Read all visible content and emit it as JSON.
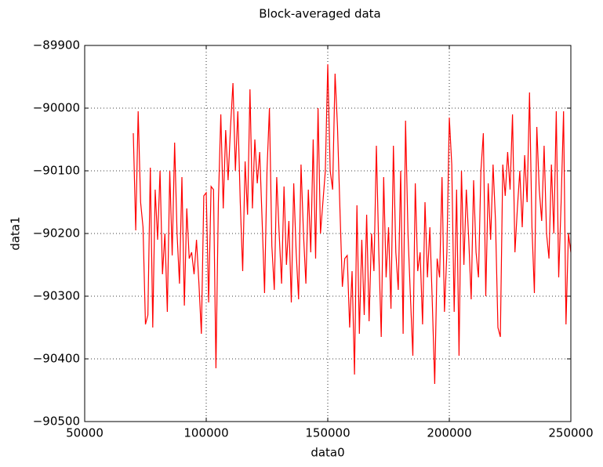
{
  "chart_data": {
    "type": "line",
    "title": "Block-averaged data",
    "xlabel": "data0",
    "ylabel": "data1",
    "x": [
      70000,
      71000,
      72000,
      73000,
      74000,
      75000,
      76000,
      77000,
      78000,
      79000,
      80000,
      81000,
      82000,
      83000,
      84000,
      85000,
      86000,
      87000,
      88000,
      89000,
      90000,
      91000,
      92000,
      93000,
      94000,
      95000,
      96000,
      97000,
      98000,
      99000,
      100000,
      101000,
      102000,
      103000,
      104000,
      105000,
      106000,
      107000,
      108000,
      109000,
      110000,
      111000,
      112000,
      113000,
      114000,
      115000,
      116000,
      117000,
      118000,
      119000,
      120000,
      121000,
      122000,
      123000,
      124000,
      125000,
      126000,
      127000,
      128000,
      129000,
      130000,
      131000,
      132000,
      133000,
      134000,
      135000,
      136000,
      137000,
      138000,
      139000,
      140000,
      141000,
      142000,
      143000,
      144000,
      145000,
      146000,
      147000,
      148000,
      149000,
      150000,
      151000,
      152000,
      153000,
      154000,
      155000,
      156000,
      157000,
      158000,
      159000,
      160000,
      161000,
      162000,
      163000,
      164000,
      165000,
      166000,
      167000,
      168000,
      169000,
      170000,
      171000,
      172000,
      173000,
      174000,
      175000,
      176000,
      177000,
      178000,
      179000,
      180000,
      181000,
      182000,
      183000,
      184000,
      185000,
      186000,
      187000,
      188000,
      189000,
      190000,
      191000,
      192000,
      193000,
      194000,
      195000,
      196000,
      197000,
      198000,
      199000,
      200000,
      201000,
      202000,
      203000,
      204000,
      205000,
      206000,
      207000,
      208000,
      209000,
      210000,
      211000,
      212000,
      213000,
      214000,
      215000,
      216000,
      217000,
      218000,
      219000,
      220000,
      221000,
      222000,
      223000,
      224000,
      225000,
      226000,
      227000,
      228000,
      229000,
      230000,
      231000,
      232000,
      233000,
      234000,
      235000,
      236000,
      237000,
      238000,
      239000,
      240000,
      241000,
      242000,
      243000,
      244000,
      245000,
      246000,
      247000,
      248000,
      249000,
      250000
    ],
    "series": [
      {
        "color": "#ff0000",
        "values": [
          -90040,
          -90195,
          -90005,
          -90150,
          -90190,
          -90345,
          -90330,
          -90095,
          -90350,
          -90130,
          -90210,
          -90100,
          -90265,
          -90200,
          -90325,
          -90100,
          -90235,
          -90055,
          -90200,
          -90280,
          -90110,
          -90315,
          -90160,
          -90240,
          -90230,
          -90265,
          -90210,
          -90280,
          -90360,
          -90140,
          -90135,
          -90310,
          -90125,
          -90130,
          -90415,
          -90150,
          -90010,
          -90160,
          -90035,
          -90115,
          -90030,
          -89960,
          -90100,
          -90005,
          -90150,
          -90260,
          -90085,
          -90170,
          -89970,
          -90160,
          -90050,
          -90120,
          -90070,
          -90180,
          -90295,
          -90100,
          -90000,
          -90220,
          -90290,
          -90110,
          -90200,
          -90280,
          -90125,
          -90250,
          -90180,
          -90310,
          -90120,
          -90230,
          -90305,
          -90090,
          -90200,
          -90280,
          -90130,
          -90230,
          -90050,
          -90240,
          -90000,
          -90200,
          -90150,
          -90100,
          -89930,
          -90100,
          -90130,
          -89945,
          -90030,
          -90160,
          -90285,
          -90240,
          -90235,
          -90350,
          -90260,
          -90425,
          -90155,
          -90360,
          -90210,
          -90330,
          -90170,
          -90340,
          -90200,
          -90260,
          -90060,
          -90230,
          -90365,
          -90110,
          -90270,
          -90190,
          -90320,
          -90060,
          -90230,
          -90290,
          -90100,
          -90360,
          -90020,
          -90200,
          -90300,
          -90395,
          -90120,
          -90260,
          -90230,
          -90345,
          -90150,
          -90270,
          -90190,
          -90310,
          -90440,
          -90240,
          -90270,
          -90110,
          -90325,
          -90230,
          -90015,
          -90090,
          -90325,
          -90130,
          -90395,
          -90100,
          -90250,
          -90130,
          -90210,
          -90305,
          -90115,
          -90230,
          -90270,
          -90100,
          -90040,
          -90300,
          -90120,
          -90210,
          -90090,
          -90180,
          -90350,
          -90365,
          -90090,
          -90140,
          -90070,
          -90130,
          -90010,
          -90230,
          -90160,
          -90100,
          -90190,
          -90075,
          -90150,
          -89975,
          -90190,
          -90295,
          -90030,
          -90130,
          -90180,
          -90060,
          -90200,
          -90240,
          -90090,
          -90200,
          -90005,
          -90270,
          -90150,
          -90005,
          -90345,
          -90200,
          -90230
        ]
      }
    ],
    "xlim": [
      50000,
      250000
    ],
    "xticks": [
      50000,
      100000,
      150000,
      200000,
      250000
    ],
    "ylim": [
      -90500,
      -89900
    ],
    "yticks": [
      {
        "value": -90500,
        "label": "−90500"
      },
      {
        "value": -90400,
        "label": "−90400"
      },
      {
        "value": -90300,
        "label": "−90300"
      },
      {
        "value": -90200,
        "label": "−90200"
      },
      {
        "value": -90100,
        "label": "−90100"
      },
      {
        "value": -90000,
        "label": "−90000"
      },
      {
        "value": -89900,
        "label": "−89900"
      }
    ],
    "grid": true
  }
}
